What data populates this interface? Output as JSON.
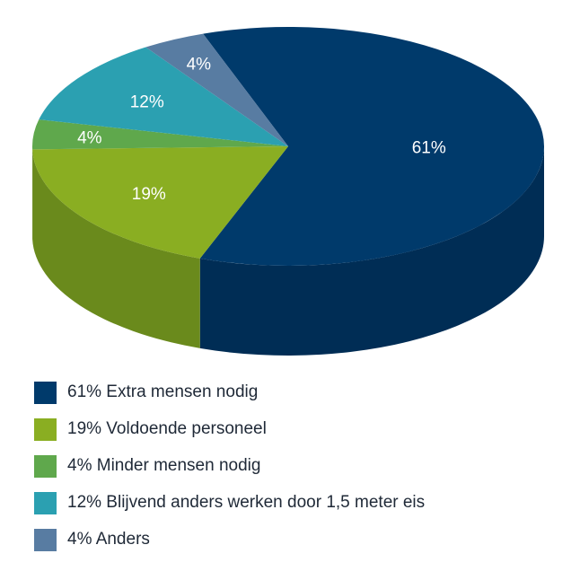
{
  "chart_data": {
    "type": "pie",
    "style": "3d-tilted",
    "slices": [
      {
        "label": "61%",
        "value": 61,
        "color": "#003a6b",
        "side_color": "#002d55"
      },
      {
        "label": "19%",
        "value": 19,
        "color": "#8aae22",
        "side_color": "#6a8a1c"
      },
      {
        "label": "4%",
        "value": 4,
        "color": "#5fa84c",
        "side_color": "#4c8a3c"
      },
      {
        "label": "12%",
        "value": 12,
        "color": "#2ba0b1",
        "side_color": "#1f7d8a"
      },
      {
        "label": "4%",
        "value": 4,
        "color": "#587ca2",
        "side_color": "#456384"
      }
    ],
    "legend": [
      {
        "text": "61% Extra mensen nodig",
        "color": "#003a6b"
      },
      {
        "text": "19% Voldoende personeel",
        "color": "#8aae22"
      },
      {
        "text": "4% Minder mensen nodig",
        "color": "#5fa84c"
      },
      {
        "text": "12% Blijvend anders werken door 1,5 meter eis",
        "color": "#2ba0b1"
      },
      {
        "text": "4% Anders",
        "color": "#587ca2"
      }
    ],
    "legend_position": "bottom-left"
  }
}
